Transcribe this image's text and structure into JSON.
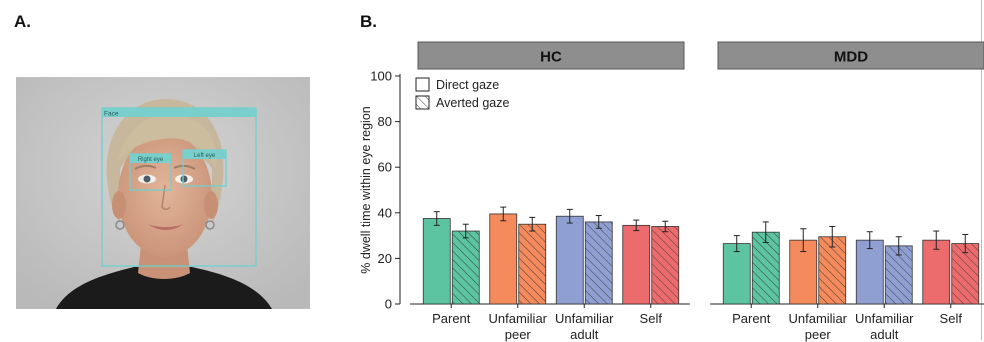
{
  "panels": {
    "a": "A.",
    "b": "B."
  },
  "photo": {
    "face_label": "Face",
    "right_eye_label": "Right eye",
    "left_eye_label": "Left eye",
    "colors": {
      "box": "#6fd0cf",
      "label_bg": "#79cfcc",
      "background": "#c9c9c9",
      "shirt": "#1b1b1b",
      "skin": "#d7a98e",
      "hair": "#c7b79c"
    }
  },
  "chart_data": {
    "type": "bar",
    "ylabel": "% dwell time within eye region",
    "ylim": [
      0,
      100
    ],
    "yticks": [
      0,
      20,
      40,
      60,
      80,
      100
    ],
    "legend": {
      "placement": "top-left",
      "entries": [
        {
          "label": "Direct gaze",
          "pattern": "solid"
        },
        {
          "label": "Averted gaze",
          "pattern": "hatched"
        }
      ]
    },
    "categories": [
      {
        "lines": [
          "Parent"
        ]
      },
      {
        "lines": [
          "Unfamiliar",
          "peer"
        ]
      },
      {
        "lines": [
          "Unfamiliar",
          "adult"
        ]
      },
      {
        "lines": [
          "Self"
        ]
      }
    ],
    "category_colors": [
      "#5cc4a0",
      "#f58b5c",
      "#8f9fd1",
      "#ec6b6c"
    ],
    "groups": [
      {
        "name": "HC",
        "direct": {
          "values": [
            37.5,
            39.5,
            38.5,
            34.5
          ],
          "errors": [
            3.0,
            3.0,
            3.0,
            2.3
          ]
        },
        "averted": {
          "values": [
            32.0,
            35.0,
            36.0,
            34.0
          ],
          "errors": [
            3.0,
            3.0,
            2.8,
            2.3
          ]
        }
      },
      {
        "name": "MDD",
        "direct": {
          "values": [
            26.5,
            28.0,
            28.0,
            28.0
          ],
          "errors": [
            3.5,
            5.0,
            3.7,
            4.0
          ]
        },
        "averted": {
          "values": [
            31.5,
            29.5,
            25.5,
            26.5
          ],
          "errors": [
            4.5,
            4.5,
            4.0,
            4.0
          ]
        }
      }
    ],
    "header_color": "#8e8e8e"
  }
}
